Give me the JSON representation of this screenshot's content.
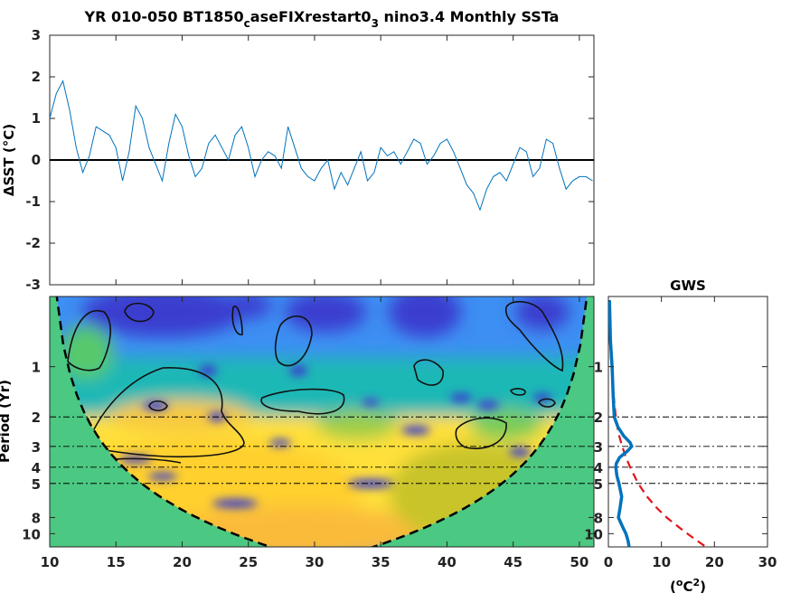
{
  "chart_data": [
    {
      "type": "line",
      "title_parts": [
        "YR 010-050 BT1850",
        "c",
        "aseFIXrestart0",
        "3",
        " nino3.4 Monthly SSTa"
      ],
      "ylabel": "ΔSST (°C)",
      "xlim": [
        10,
        51.1
      ],
      "ylim": [
        -3,
        3
      ],
      "yticks": [
        "3",
        "2",
        "1",
        "0",
        "-1",
        "-2",
        "-3"
      ],
      "zero_line": 0,
      "series_color": "#0072bd",
      "x": [
        10.0,
        10.5,
        11.0,
        11.5,
        12.0,
        12.5,
        13.0,
        13.5,
        14.0,
        14.5,
        15.0,
        15.5,
        16.0,
        16.5,
        17.0,
        17.5,
        18.0,
        18.5,
        19.0,
        19.5,
        20.0,
        20.5,
        21.0,
        21.5,
        22.0,
        22.5,
        23.0,
        23.5,
        24.0,
        24.5,
        25.0,
        25.5,
        26.0,
        26.5,
        27.0,
        27.5,
        28.0,
        28.5,
        29.0,
        29.5,
        30.0,
        30.5,
        31.0,
        31.5,
        32.0,
        32.5,
        33.0,
        33.5,
        34.0,
        34.5,
        35.0,
        35.5,
        36.0,
        36.5,
        37.0,
        37.5,
        38.0,
        38.5,
        39.0,
        39.5,
        40.0,
        40.5,
        41.0,
        41.5,
        42.0,
        42.5,
        43.0,
        43.5,
        44.0,
        44.5,
        45.0,
        45.5,
        46.0,
        46.5,
        47.0,
        47.5,
        48.0,
        48.5,
        49.0,
        49.5,
        50.0,
        50.5,
        51.0
      ],
      "values": [
        1.0,
        1.6,
        1.9,
        1.2,
        0.3,
        -0.3,
        0.1,
        0.8,
        0.7,
        0.6,
        0.3,
        -0.5,
        0.2,
        1.3,
        1.0,
        0.3,
        -0.1,
        -0.5,
        0.4,
        1.1,
        0.8,
        0.1,
        -0.4,
        -0.2,
        0.4,
        0.6,
        0.3,
        0.0,
        0.6,
        0.8,
        0.3,
        -0.4,
        0.0,
        0.2,
        0.1,
        -0.2,
        0.8,
        0.3,
        -0.2,
        -0.4,
        -0.5,
        -0.2,
        0.0,
        -0.7,
        -0.3,
        -0.6,
        -0.2,
        0.2,
        -0.5,
        -0.3,
        0.3,
        0.1,
        0.2,
        -0.1,
        0.2,
        0.5,
        0.4,
        -0.1,
        0.1,
        0.4,
        0.5,
        0.2,
        -0.2,
        -0.6,
        -0.8,
        -1.2,
        -0.7,
        -0.4,
        -0.3,
        -0.5,
        -0.1,
        0.3,
        0.2,
        -0.4,
        -0.2,
        0.5,
        0.4,
        -0.2,
        -0.7,
        -0.5,
        -0.4,
        -0.4,
        -0.5
      ]
    },
    {
      "type": "heatmap",
      "ylabel": "Period (Yr)",
      "xlim": [
        10,
        51.1
      ],
      "xticks": [
        "10",
        "15",
        "20",
        "25",
        "30",
        "35",
        "40",
        "45",
        "50"
      ],
      "yticks": [
        "1",
        "2",
        "3",
        "4",
        "5",
        "8",
        "10"
      ],
      "period_range": [
        0.38,
        12
      ],
      "yscale": "log",
      "reference_periods": [
        2,
        3,
        4,
        5
      ],
      "colormap": "parula",
      "cone_of_influence": true,
      "cone_fill": "#4bc882"
    },
    {
      "type": "line",
      "title": "GWS",
      "xlabel_parts": [
        "(",
        "o",
        "C",
        "2",
        ")"
      ],
      "xlim": [
        0,
        30
      ],
      "xticks": [
        "0",
        "10",
        "20",
        "30"
      ],
      "ylim_period": [
        0.38,
        12
      ],
      "reference_periods": [
        2,
        3,
        4,
        5
      ],
      "series": [
        {
          "style": "solid",
          "color": "#0072bd",
          "period": [
            0.4,
            0.7,
            1.0,
            1.5,
            2.0,
            2.3,
            2.6,
            2.85,
            3.0,
            3.2,
            3.5,
            3.8,
            4.0,
            4.5,
            5.0,
            6.0,
            7.0,
            8.0,
            9.0,
            10.0,
            11.0,
            12.0
          ],
          "power": [
            0.2,
            0.4,
            0.7,
            0.9,
            1.1,
            1.8,
            2.9,
            4.1,
            4.4,
            3.6,
            2.1,
            1.5,
            1.4,
            1.6,
            2.0,
            2.5,
            2.2,
            1.9,
            2.6,
            3.3,
            3.7,
            3.9
          ]
        },
        {
          "style": "dashed",
          "color": "#e0141b",
          "period": [
            0.4,
            0.7,
            1.0,
            1.5,
            2.0,
            2.5,
            3.0,
            3.5,
            4.0,
            5.0,
            6.0,
            7.0,
            8.0,
            9.0,
            10.0,
            11.0,
            12.0
          ],
          "power": [
            0.1,
            0.3,
            0.6,
            1.0,
            1.4,
            1.9,
            2.6,
            3.3,
            4.1,
            5.6,
            7.3,
            9.1,
            11.0,
            13.0,
            14.9,
            16.7,
            18.4
          ]
        }
      ]
    }
  ]
}
